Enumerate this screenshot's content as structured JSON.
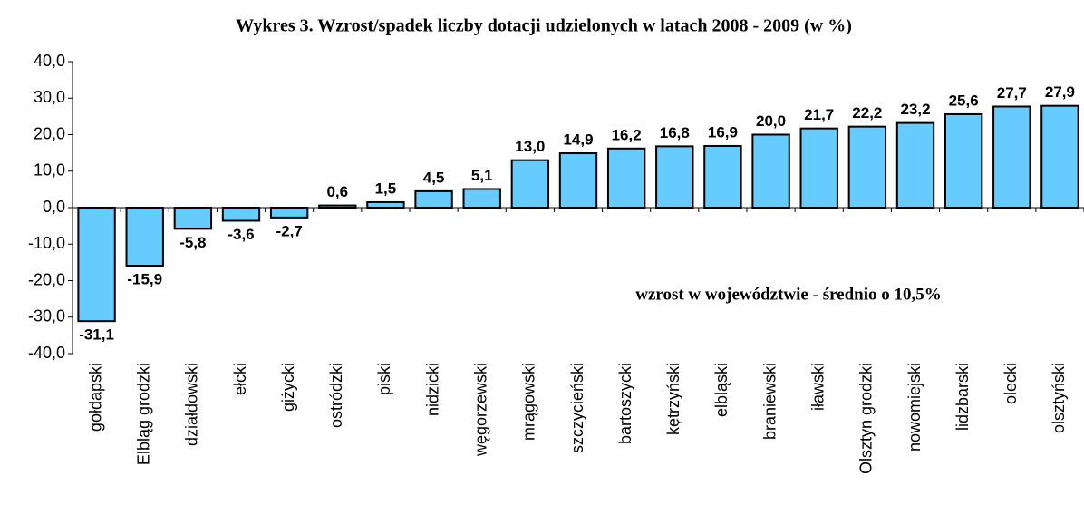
{
  "chart_data": {
    "type": "bar",
    "title": "Wykres 3. Wzrost/spadek liczby dotacji udzielonych w latach 2008 - 2009  (w %)",
    "annotation": "wzrost w województwie - średnio o 10,5%",
    "categories": [
      "gołdapski",
      "Elbląg grodzki",
      "działdowski",
      "ełcki",
      "giżycki",
      "ostródzki",
      "piski",
      "nidzicki",
      "węgorzewski",
      "mrągowski",
      "szczycieński",
      "bartoszycki",
      "kętrzyński",
      "elbląski",
      "braniewski",
      "iławski",
      "Olsztyn grodzki",
      "nowomiejski",
      "lidzbarski",
      "olecki",
      "olsztyński"
    ],
    "values": [
      -31.1,
      -15.9,
      -5.8,
      -3.6,
      -2.7,
      0.6,
      1.5,
      4.5,
      5.1,
      13.0,
      14.9,
      16.2,
      16.8,
      16.9,
      20.0,
      21.7,
      22.2,
      23.2,
      25.6,
      27.7,
      27.9
    ],
    "value_labels": [
      "-31,1",
      "-15,9",
      "-5,8",
      "-3,6",
      "-2,7",
      "0,6",
      "1,5",
      "4,5",
      "5,1",
      "13,0",
      "14,9",
      "16,2",
      "16,8",
      "16,9",
      "20,0",
      "21,7",
      "22,2",
      "23,2",
      "25,6",
      "27,7",
      "27,9"
    ],
    "color": "#66ccff",
    "ylim": [
      -40,
      40
    ],
    "yticks": [
      {
        "value": -40,
        "label": "-40,0"
      },
      {
        "value": -30,
        "label": "-30,0"
      },
      {
        "value": -20,
        "label": "-20,0"
      },
      {
        "value": -10,
        "label": "-10,0"
      },
      {
        "value": 0,
        "label": "0,0"
      },
      {
        "value": 10,
        "label": "10,0"
      },
      {
        "value": 20,
        "label": "20,0"
      },
      {
        "value": 30,
        "label": "30,0"
      },
      {
        "value": 40,
        "label": "40,0"
      }
    ],
    "grid": false
  }
}
